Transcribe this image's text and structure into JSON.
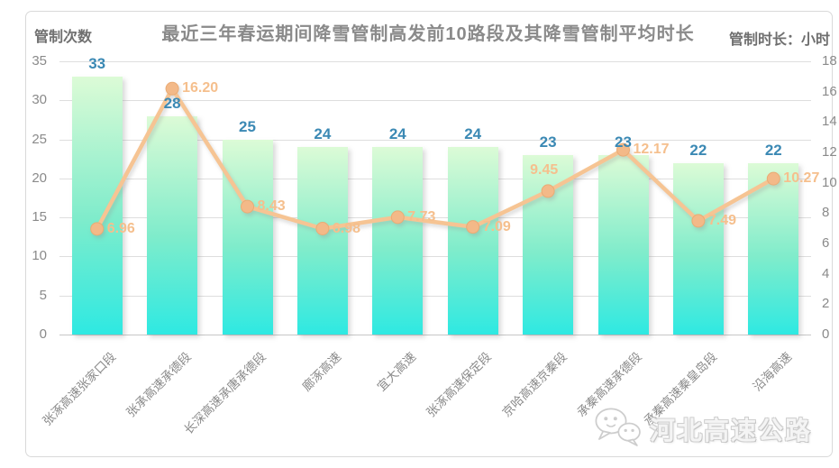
{
  "title": "最近三年春运期间降雪管制高发前10路段及其降雪管制平均时长",
  "left_axis": {
    "caption": "管制次数",
    "ticks": [
      35,
      30,
      25,
      20,
      15,
      10,
      5,
      0
    ]
  },
  "right_axis": {
    "caption": "管制时长：小时",
    "ticks": [
      18,
      16,
      14,
      12,
      10,
      8,
      6,
      4,
      2,
      0
    ]
  },
  "watermark": {
    "icon": "wechat-icon",
    "label": "河北高速公路"
  },
  "colors": {
    "bar_gradient_top": "#dcfbd6",
    "bar_gradient_mid": "#7feccb",
    "bar_gradient_bottom": "#2ee9e2",
    "line": "#f6c493",
    "marker": "#f3b988",
    "line_label": "#f5bf8d",
    "bar_label": "#3b89b4",
    "axis_text": "#8a8a8a",
    "title_text": "#8a8a8a",
    "grid": "#dedede"
  },
  "chart_data": {
    "type": "bar",
    "subtype": "combo-bar-line",
    "title": "最近三年春运期间降雪管制高发前10路段及其降雪管制平均时长",
    "categories": [
      "张涿高速张家口段",
      "张承高速承德段",
      "长深高速承唐承德段",
      "廊涿高速",
      "宜大高速",
      "张涿高速保定段",
      "京哈高速京秦段",
      "承秦高速承德段",
      "承秦高速秦皇岛段",
      "沿海高速"
    ],
    "series": [
      {
        "name": "管制次数",
        "type": "bar",
        "axis": "left",
        "values": [
          33,
          28,
          25,
          24,
          24,
          24,
          23,
          23,
          22,
          22
        ]
      },
      {
        "name": "管制时长：小时",
        "type": "line",
        "axis": "right",
        "values": [
          6.96,
          16.2,
          8.43,
          6.98,
          7.73,
          7.09,
          9.45,
          12.17,
          7.49,
          10.27
        ]
      }
    ],
    "left_ylim": [
      0,
      35
    ],
    "right_ylim": [
      0,
      18
    ],
    "grid": true,
    "legend": "none",
    "line_label_decimals": 2,
    "label_overrides": {
      "6": "above"
    }
  }
}
